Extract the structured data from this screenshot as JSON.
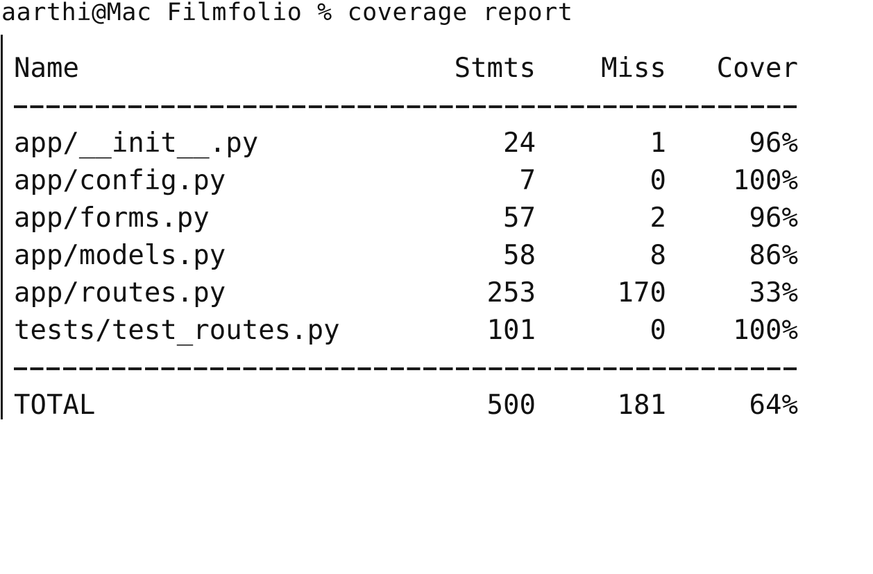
{
  "terminal": {
    "prompt": "aarthi@Mac Filmfolio % coverage report"
  },
  "report": {
    "headers": {
      "name": "Name",
      "stmts": "Stmts",
      "miss": "Miss",
      "cover": "Cover"
    },
    "rows": [
      {
        "name": "app/__init__.py",
        "stmts": "24",
        "miss": "1",
        "cover": "96%"
      },
      {
        "name": "app/config.py",
        "stmts": "7",
        "miss": "0",
        "cover": "100%"
      },
      {
        "name": "app/forms.py",
        "stmts": "57",
        "miss": "2",
        "cover": "96%"
      },
      {
        "name": "app/models.py",
        "stmts": "58",
        "miss": "8",
        "cover": "86%"
      },
      {
        "name": "app/routes.py",
        "stmts": "253",
        "miss": "170",
        "cover": "33%"
      },
      {
        "name": "tests/test_routes.py",
        "stmts": "101",
        "miss": "0",
        "cover": "100%"
      }
    ],
    "total": {
      "name": "TOTAL",
      "stmts": "500",
      "miss": "181",
      "cover": "64%"
    }
  }
}
